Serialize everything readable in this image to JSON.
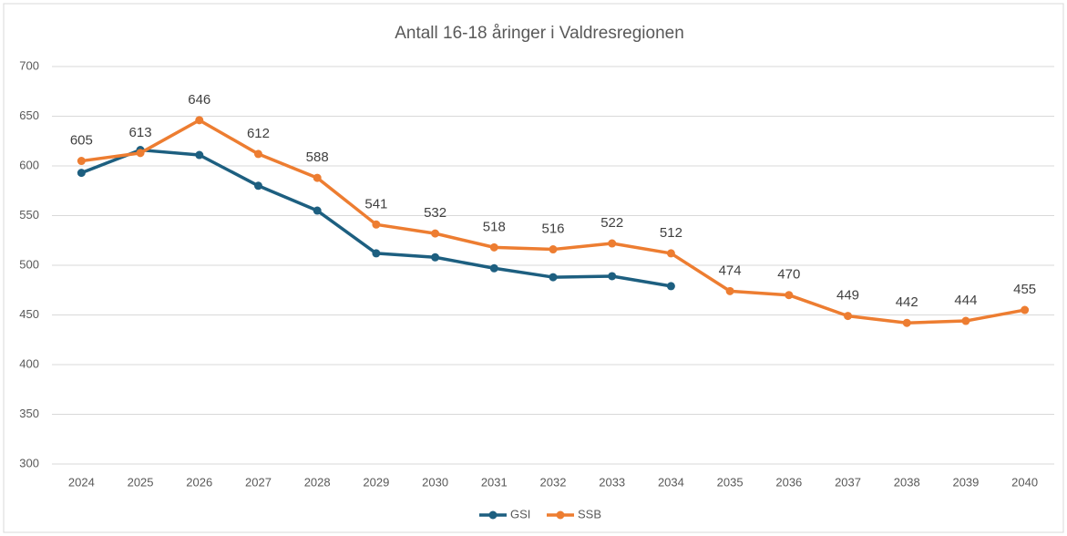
{
  "chart_data": {
    "type": "line",
    "title": "Antall 16-18 åringer i Valdresregionen",
    "categories": [
      "2024",
      "2025",
      "2026",
      "2027",
      "2028",
      "2029",
      "2030",
      "2031",
      "2032",
      "2033",
      "2034",
      "2035",
      "2036",
      "2037",
      "2038",
      "2039",
      "2040"
    ],
    "series": [
      {
        "name": "GSI",
        "color": "#1d5f80",
        "values": [
          593,
          616,
          611,
          580,
          555,
          512,
          508,
          497,
          488,
          489,
          479,
          null,
          null,
          null,
          null,
          null,
          null
        ]
      },
      {
        "name": "SSB",
        "color": "#ed7d31",
        "values": [
          605,
          613,
          646,
          612,
          588,
          541,
          532,
          518,
          516,
          522,
          512,
          474,
          470,
          449,
          442,
          444,
          455
        ],
        "data_labels": true
      }
    ],
    "ylim": [
      300,
      700
    ],
    "yticks": [
      300,
      350,
      400,
      450,
      500,
      550,
      600,
      650,
      700
    ],
    "grid": true,
    "legend": "bottom"
  }
}
